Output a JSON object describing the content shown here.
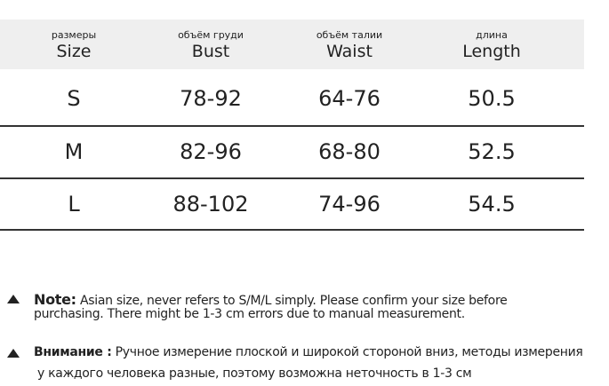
{
  "table": {
    "headers": [
      {
        "ru": "размеры",
        "en": "Size"
      },
      {
        "ru": "объём груди",
        "en": "Bust"
      },
      {
        "ru": "объём талии",
        "en": "Waist"
      },
      {
        "ru": "длина",
        "en": "Length"
      }
    ],
    "rows": [
      [
        "S",
        "78-92",
        "64-76",
        "50.5"
      ],
      [
        "M",
        "82-96",
        "68-80",
        "52.5"
      ],
      [
        "L",
        "88-102",
        "74-96",
        "54.5"
      ]
    ]
  },
  "notes": [
    {
      "label": "Note:",
      "lines": [
        "Asian size, never refers to S/M/L simply. Please confirm your size before",
        "purchasing. There might be 1-3 cm errors due to manual measurement."
      ]
    },
    {
      "label": "Внимание :",
      "lines": [
        "Ручное измерение плоской и широкой стороной вниз, методы измерения",
        "у каждого человека разные, поэтому возможна неточность в 1-3 см"
      ]
    }
  ]
}
